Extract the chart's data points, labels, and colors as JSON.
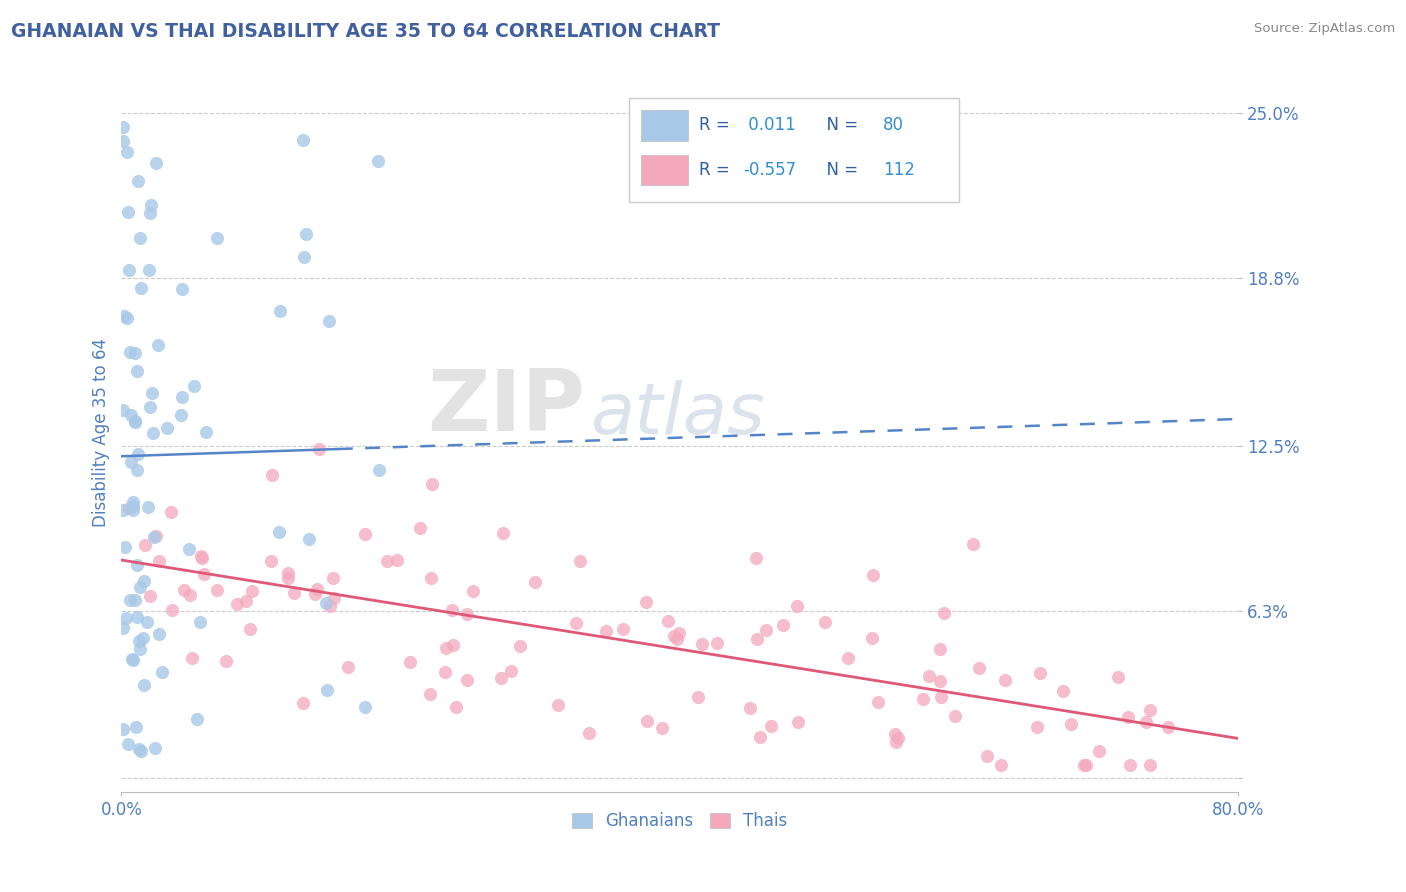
{
  "title": "GHANAIAN VS THAI DISABILITY AGE 35 TO 64 CORRELATION CHART",
  "source": "Source: ZipAtlas.com",
  "ylabel": "Disability Age 35 to 64",
  "xlim": [
    0.0,
    0.8
  ],
  "ylim": [
    -0.005,
    0.265
  ],
  "yticks": [
    0.0,
    0.063,
    0.125,
    0.188,
    0.25
  ],
  "ytick_labels": [
    "",
    "6.3%",
    "12.5%",
    "18.8%",
    "25.0%"
  ],
  "xtick_positions": [
    0.0,
    0.8
  ],
  "xtick_labels": [
    "0.0%",
    "80.0%"
  ],
  "ghanaian_color": "#A8C8E8",
  "thai_color": "#F4A8BC",
  "trend_ghanaian_color": "#5585C8",
  "trend_thai_color": "#E05878",
  "legend_r_ghanaian": "0.011",
  "legend_n_ghanaian": "80",
  "legend_r_thai": "-0.557",
  "legend_n_thai": "112",
  "watermark_zip": "ZIP",
  "watermark_atlas": "atlas",
  "background_color": "#FFFFFF",
  "grid_color": "#CCCCCC",
  "title_color": "#4060A0",
  "axis_label_color": "#5080C0",
  "tick_label_color": "#5080C0",
  "legend_text_color": "#3060A0",
  "legend_val_color": "#3090D0",
  "source_color": "#888888",
  "gh_trend_start_y": 0.121,
  "gh_trend_end_y": 0.135,
  "th_trend_start_y": 0.082,
  "th_trend_end_y": 0.015
}
